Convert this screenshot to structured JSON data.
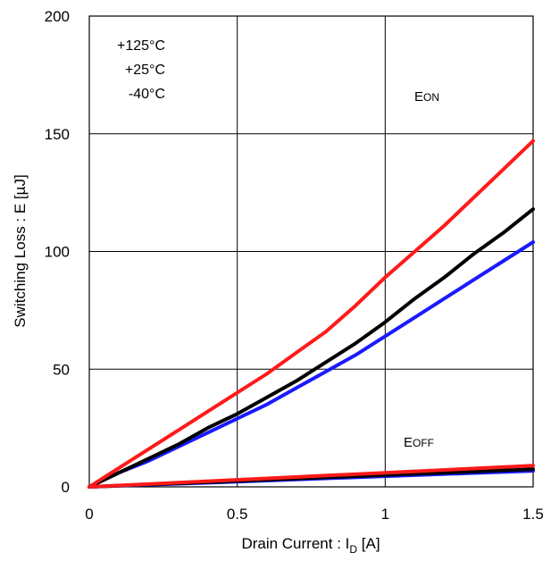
{
  "chart_data": {
    "type": "line",
    "title": "",
    "xlabel_main": "Drain Current : I",
    "xlabel_sub": "D",
    "xlabel_unit": " [A]",
    "ylabel": "Switching Loss : E [µJ]",
    "xlim": [
      0,
      1.5
    ],
    "ylim": [
      0,
      200
    ],
    "xticks": [
      0,
      0.5,
      1,
      1.5
    ],
    "xtick_labels": [
      "0",
      "0.5",
      "1",
      "1.5"
    ],
    "yticks": [
      0,
      50,
      100,
      150,
      200
    ],
    "ytick_labels": [
      "0",
      "50",
      "100",
      "150",
      "200"
    ],
    "grid": true,
    "legend": {
      "placement": "top-left",
      "entries": [
        "+125°C",
        "+25°C",
        "-40°C"
      ]
    },
    "annotations": {
      "eon_main": "E",
      "eon_sub": "ON",
      "eoff_main": "E",
      "eoff_sub": "OFF"
    },
    "colors": {
      "t125": "#ff1a1a",
      "t25": "#000000",
      "tm40": "#1a1aff",
      "grid": "#000000"
    },
    "series": [
      {
        "group": "EON",
        "legend_ref": "+125°C",
        "color": "#ff1a1a",
        "x": [
          0,
          0.1,
          0.2,
          0.3,
          0.4,
          0.5,
          0.6,
          0.7,
          0.8,
          0.9,
          1.0,
          1.1,
          1.2,
          1.3,
          1.4,
          1.5
        ],
        "y": [
          0,
          8,
          16,
          24,
          32,
          40,
          48,
          57,
          66,
          77,
          89,
          100,
          111,
          123,
          135,
          147
        ]
      },
      {
        "group": "EON",
        "legend_ref": "+25°C",
        "color": "#000000",
        "x": [
          0,
          0.1,
          0.2,
          0.3,
          0.4,
          0.5,
          0.6,
          0.7,
          0.8,
          0.9,
          1.0,
          1.1,
          1.2,
          1.3,
          1.4,
          1.5
        ],
        "y": [
          0,
          6,
          12,
          18,
          25,
          31,
          38,
          45,
          53,
          61,
          70,
          80,
          89,
          99,
          108,
          118
        ]
      },
      {
        "group": "EON",
        "legend_ref": "-40°C",
        "color": "#1a1aff",
        "x": [
          0,
          0.1,
          0.2,
          0.3,
          0.4,
          0.5,
          0.6,
          0.7,
          0.8,
          0.9,
          1.0,
          1.1,
          1.2,
          1.3,
          1.4,
          1.5
        ],
        "y": [
          0,
          6,
          11,
          17,
          23,
          29,
          35,
          42,
          49,
          56,
          64,
          72,
          80,
          88,
          96,
          104
        ]
      },
      {
        "group": "EOFF",
        "legend_ref": "+125°C",
        "color": "#ff1a1a",
        "x": [
          0,
          0.5,
          1.0,
          1.5
        ],
        "y": [
          0,
          3,
          6,
          9
        ]
      },
      {
        "group": "EOFF",
        "legend_ref": "+25°C",
        "color": "#000000",
        "x": [
          0,
          0.5,
          1.0,
          1.5
        ],
        "y": [
          0,
          2.5,
          5,
          7.5
        ]
      },
      {
        "group": "EOFF",
        "legend_ref": "-40°C",
        "color": "#1a1aff",
        "x": [
          0,
          0.5,
          1.0,
          1.5
        ],
        "y": [
          0,
          2.2,
          4.5,
          6.8
        ]
      }
    ]
  }
}
